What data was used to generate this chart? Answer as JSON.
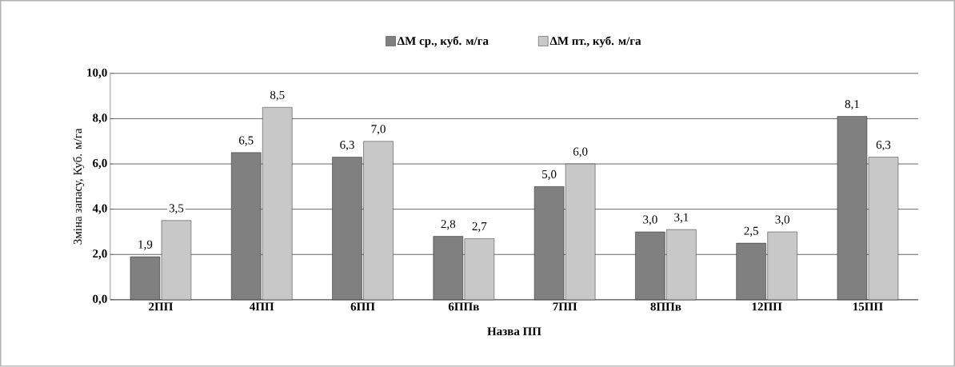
{
  "chart_data": {
    "type": "bar",
    "xlabel": "Назва ПП",
    "ylabel": "Зміна запасу, Куб. м/га",
    "categories": [
      "2ПП",
      "4ПП",
      "6ПП",
      "6ППв",
      "7ПП",
      "8ППв",
      "12ПП",
      "15ПП"
    ],
    "series": [
      {
        "name": "ΔM ср., куб. м/га",
        "color": "#808080",
        "values": [
          1.9,
          6.5,
          6.3,
          2.8,
          5.0,
          3.0,
          2.5,
          8.1
        ],
        "value_labels": [
          "1,9",
          "6,5",
          "6,3",
          "2,8",
          "5,0",
          "3,0",
          "2,5",
          "8,1"
        ]
      },
      {
        "name": "ΔM пт., куб. м/га",
        "color": "#c8c8c8",
        "values": [
          3.5,
          8.5,
          7.0,
          2.7,
          6.0,
          3.1,
          3.0,
          6.3
        ],
        "value_labels": [
          "3,5",
          "8,5",
          "7,0",
          "2,7",
          "6,0",
          "3,1",
          "3,0",
          "6,3"
        ]
      }
    ],
    "ylim": [
      0,
      10
    ],
    "yticks": [
      {
        "value": 0,
        "label": "0,0"
      },
      {
        "value": 2,
        "label": "2,0"
      },
      {
        "value": 4,
        "label": "4,0"
      },
      {
        "value": 6,
        "label": "6,0"
      },
      {
        "value": 8,
        "label": "8,0"
      },
      {
        "value": 10,
        "label": "10,0"
      }
    ],
    "grid": "y",
    "legend": "top"
  }
}
